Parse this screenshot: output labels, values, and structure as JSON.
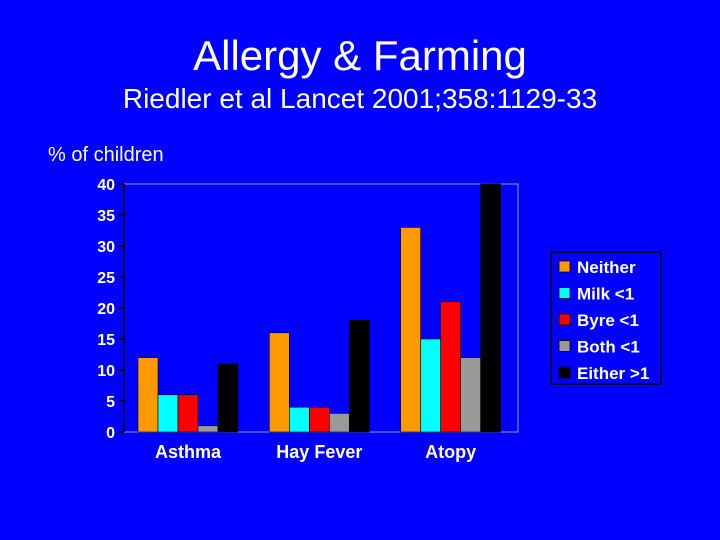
{
  "slide": {
    "title": "Allergy & Farming",
    "subtitle": "Riedler et al Lancet 2001;358:1129-33"
  },
  "chart_data": {
    "type": "bar",
    "title": "",
    "xlabel": "",
    "ylabel": "% of children",
    "ylim": [
      0,
      40
    ],
    "yticks": [
      0,
      5,
      10,
      15,
      20,
      25,
      30,
      35,
      40
    ],
    "categories": [
      "Asthma",
      "Hay Fever",
      "Atopy"
    ],
    "series": [
      {
        "name": "Neither",
        "color": "#ff9900",
        "values": [
          12,
          16,
          33
        ]
      },
      {
        "name": "Milk <1",
        "color": "#00ffff",
        "values": [
          6,
          4,
          15
        ]
      },
      {
        "name": "Byre <1",
        "color": "#ff0000",
        "values": [
          6,
          4,
          21
        ]
      },
      {
        "name": "Both <1",
        "color": "#999999",
        "values": [
          1,
          3,
          12
        ]
      },
      {
        "name": "Either >1",
        "color": "#000000",
        "values": [
          11,
          18,
          40
        ]
      }
    ],
    "grid": false,
    "legend_position": "right"
  }
}
